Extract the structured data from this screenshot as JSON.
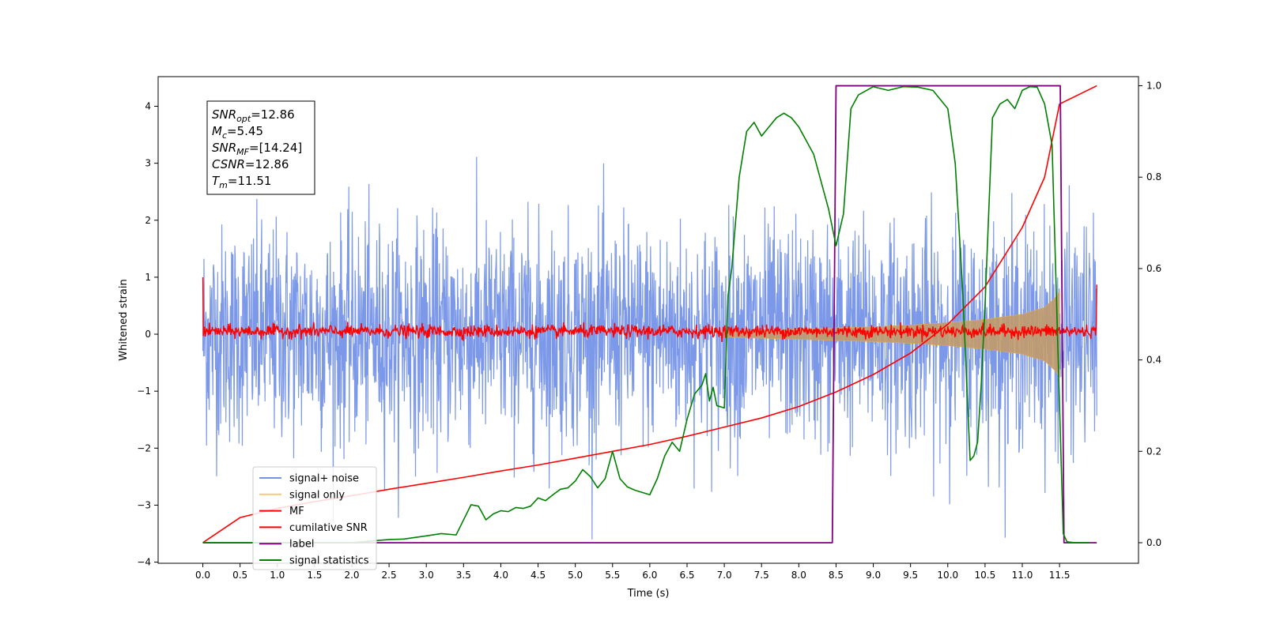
{
  "chart_data": {
    "type": "line",
    "xlabel": "Time (s)",
    "ylabel_left": "Whitened strain",
    "ylabel_right": "",
    "xlim": [
      -0.6,
      12.56
    ],
    "ylim_left": [
      -4.02,
      4.52
    ],
    "ylim_right": [
      -0.045,
      1.02
    ],
    "x_ticks": [
      0.0,
      0.5,
      1.0,
      1.5,
      2.0,
      2.5,
      3.0,
      3.5,
      4.0,
      4.5,
      5.0,
      5.5,
      6.0,
      6.5,
      7.0,
      7.5,
      8.0,
      8.5,
      9.0,
      9.5,
      10.0,
      10.5,
      11.0,
      11.5
    ],
    "x_tick_labels": [
      "0.0",
      "0.5",
      "1.0",
      "1.5",
      "2.0",
      "2.5",
      "3.0",
      "3.5",
      "4.0",
      "4.5",
      "5.0",
      "5.5",
      "6.0",
      "6.5",
      "7.0",
      "7.5",
      "8.0",
      "8.5",
      "9.0",
      "9.5",
      "10.0",
      "10.5",
      "11.0",
      "11.5"
    ],
    "y_ticks_left": [
      -4,
      -3,
      -2,
      -1,
      0,
      1,
      2,
      3,
      4
    ],
    "y_tick_labels_left": [
      "−4",
      "−3",
      "−2",
      "−1",
      "0",
      "1",
      "2",
      "3",
      "4"
    ],
    "y_ticks_right": [
      0.0,
      0.2,
      0.4,
      0.6,
      0.8,
      1.0
    ],
    "y_tick_labels_right": [
      "0.0",
      "0.2",
      "0.4",
      "0.6",
      "0.8",
      "1.0"
    ],
    "grid": false,
    "legend_position": "lower-left",
    "annotation": [
      {
        "sym": "SNR",
        "sub": "opt",
        "val": "=12.86"
      },
      {
        "sym": "M",
        "sub": "c",
        "val": "=5.45"
      },
      {
        "sym": "SNR",
        "sub": "MF",
        "val": "=[14.24]"
      },
      {
        "sym": "CSNR",
        "sub": "",
        "val": "=12.86"
      },
      {
        "sym": "T",
        "sub": "m",
        "val": "=11.51"
      }
    ],
    "series": [
      {
        "name": "signal+ noise",
        "axis": "left",
        "color": "#7592e7",
        "description_x_range": [
          0.0,
          12.0
        ],
        "envelope": {
          "typical_abs": 1.9,
          "max_abs": 3.6
        }
      },
      {
        "name": "signal only",
        "axis": "left",
        "color": "#f5c97a",
        "x": [
          7.0,
          7.5,
          8.0,
          8.5,
          9.0,
          9.5,
          10.0,
          10.5,
          11.0,
          11.3,
          11.45,
          11.5
        ],
        "amplitude": [
          0.05,
          0.07,
          0.09,
          0.11,
          0.13,
          0.16,
          0.2,
          0.26,
          0.35,
          0.47,
          0.65,
          0.75
        ]
      },
      {
        "name": "MF",
        "axis": "left",
        "color": "#ff0000",
        "x_range": [
          0.0,
          12.0
        ],
        "baseline": 0.05,
        "noise_amplitude": 0.08,
        "edge_spikes": [
          [
            0.0,
            1.0
          ],
          [
            12.0,
            0.87
          ]
        ]
      },
      {
        "name": "cumilative SNR",
        "axis": "right",
        "color": "#ff0000",
        "x": [
          0.0,
          0.5,
          1.0,
          1.5,
          2.0,
          2.5,
          3.0,
          3.5,
          4.0,
          4.5,
          5.0,
          5.5,
          6.0,
          6.5,
          7.0,
          7.5,
          8.0,
          8.5,
          9.0,
          9.5,
          10.0,
          10.5,
          11.0,
          11.3,
          11.5,
          12.0
        ],
        "y": [
          0.0,
          0.055,
          0.075,
          0.09,
          0.103,
          0.117,
          0.13,
          0.143,
          0.157,
          0.17,
          0.185,
          0.2,
          0.215,
          0.233,
          0.253,
          0.273,
          0.298,
          0.33,
          0.368,
          0.415,
          0.478,
          0.56,
          0.69,
          0.8,
          0.96,
          1.0
        ]
      },
      {
        "name": "label",
        "axis": "right",
        "color": "#800080",
        "x": [
          0.0,
          8.45,
          8.5,
          11.51,
          11.56,
          12.0
        ],
        "y": [
          0.0,
          0.0,
          1.0,
          1.0,
          0.0,
          0.0
        ]
      },
      {
        "name": "signal statistics",
        "axis": "right",
        "color": "#008000",
        "x": [
          0.0,
          1.0,
          2.0,
          2.5,
          2.7,
          3.0,
          3.2,
          3.4,
          3.5,
          3.6,
          3.7,
          3.8,
          3.9,
          4.0,
          4.1,
          4.2,
          4.3,
          4.4,
          4.5,
          4.6,
          4.7,
          4.8,
          4.9,
          5.0,
          5.1,
          5.2,
          5.3,
          5.4,
          5.5,
          5.6,
          5.7,
          5.8,
          5.9,
          6.0,
          6.1,
          6.2,
          6.3,
          6.4,
          6.5,
          6.6,
          6.7,
          6.75,
          6.8,
          6.85,
          6.9,
          7.0,
          7.05,
          7.1,
          7.2,
          7.3,
          7.4,
          7.5,
          7.6,
          7.7,
          7.8,
          7.9,
          8.0,
          8.1,
          8.2,
          8.3,
          8.4,
          8.5,
          8.6,
          8.7,
          8.8,
          9.0,
          9.2,
          9.4,
          9.6,
          9.8,
          10.0,
          10.1,
          10.2,
          10.3,
          10.35,
          10.4,
          10.45,
          10.5,
          10.6,
          10.7,
          10.8,
          10.9,
          11.0,
          11.1,
          11.2,
          11.3,
          11.4,
          11.5,
          11.55,
          11.6,
          11.7,
          11.9
        ],
        "y": [
          0.0,
          0.0,
          0.0,
          0.007,
          0.008,
          0.015,
          0.02,
          0.017,
          0.05,
          0.083,
          0.08,
          0.05,
          0.063,
          0.07,
          0.068,
          0.077,
          0.075,
          0.08,
          0.098,
          0.092,
          0.105,
          0.117,
          0.12,
          0.135,
          0.16,
          0.145,
          0.12,
          0.14,
          0.2,
          0.14,
          0.122,
          0.115,
          0.11,
          0.105,
          0.14,
          0.19,
          0.22,
          0.2,
          0.27,
          0.325,
          0.345,
          0.37,
          0.31,
          0.34,
          0.3,
          0.295,
          0.54,
          0.6,
          0.8,
          0.9,
          0.92,
          0.89,
          0.91,
          0.93,
          0.94,
          0.93,
          0.91,
          0.88,
          0.85,
          0.79,
          0.73,
          0.65,
          0.72,
          0.95,
          0.98,
          0.998,
          0.99,
          0.998,
          0.997,
          0.99,
          0.95,
          0.83,
          0.55,
          0.18,
          0.19,
          0.22,
          0.35,
          0.52,
          0.93,
          0.96,
          0.97,
          0.95,
          0.99,
          0.998,
          0.997,
          0.96,
          0.87,
          0.3,
          0.02,
          0.002,
          0.0,
          0.0
        ]
      }
    ]
  }
}
